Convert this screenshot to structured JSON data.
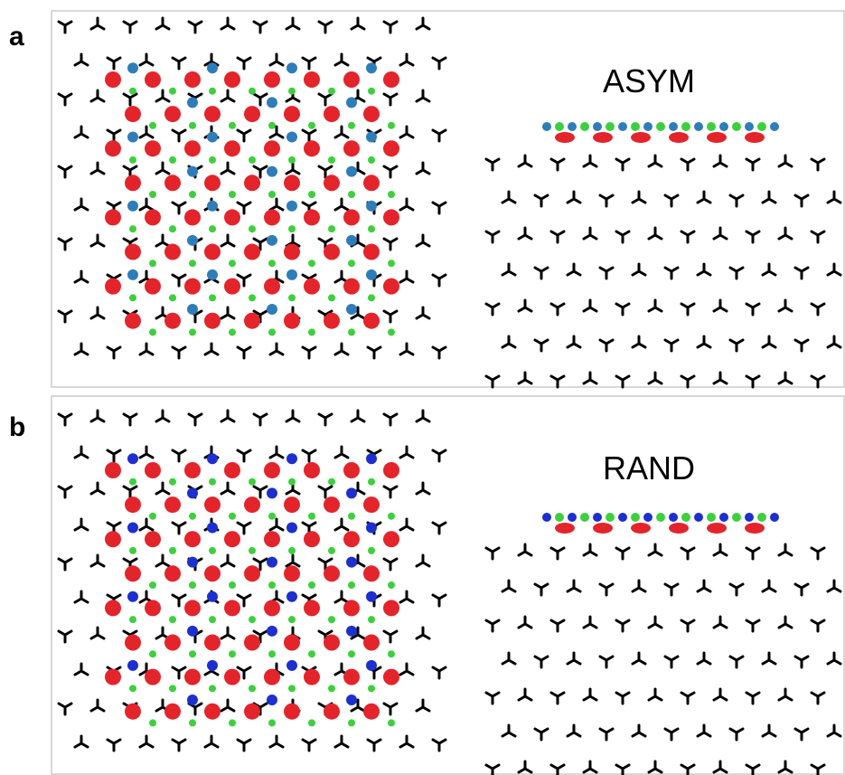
{
  "panels": [
    {
      "label": "a",
      "title": "ASYM"
    },
    {
      "label": "b",
      "title": "RAND"
    }
  ]
}
